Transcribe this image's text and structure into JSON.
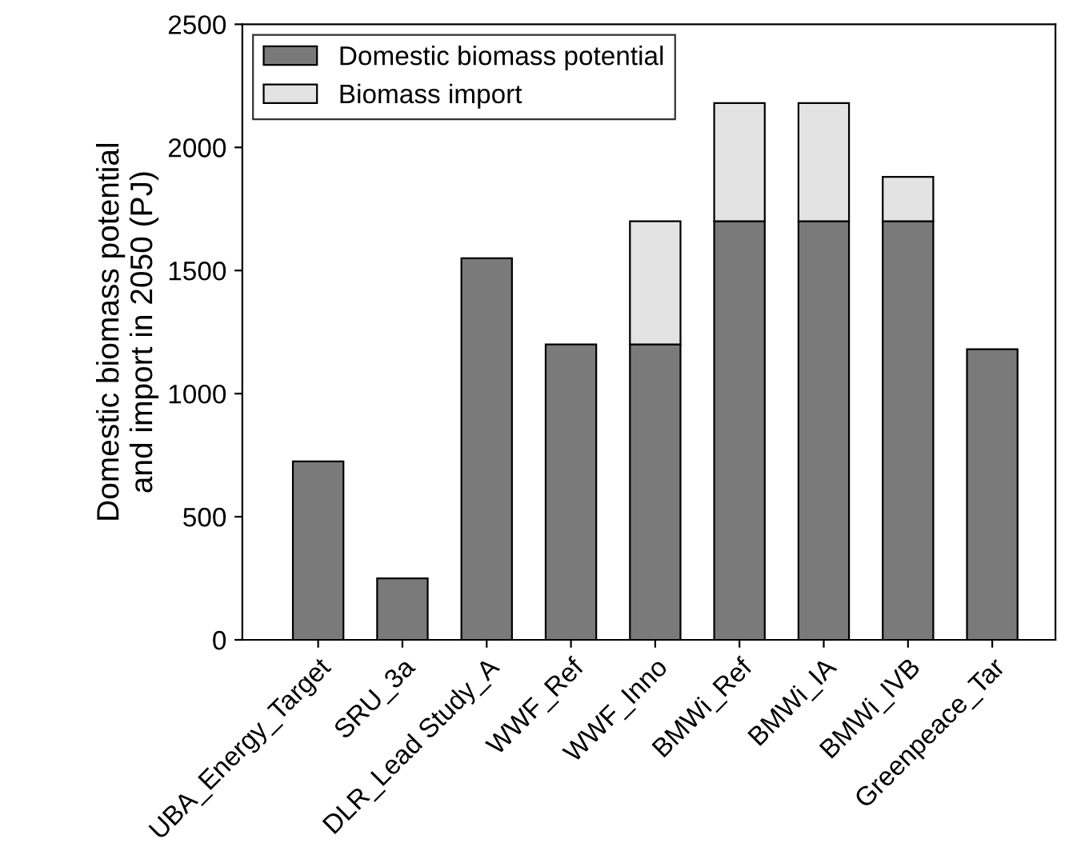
{
  "chart_data": {
    "type": "bar",
    "stacked": true,
    "ylabel": "Domestic biomass potential\nand import in 2050 (PJ)",
    "categories": [
      "UBA_Energy_Target",
      "SRU_3a",
      "DLR_Lead Study_A",
      "WWF_Ref",
      "WWF_Inno",
      "BMWi_Ref",
      "BMWi_IA",
      "BMWi_IVB",
      "Greenpeace_Tar"
    ],
    "series": [
      {
        "name": "Domestic biomass potential",
        "color": "#7a7a7a",
        "values": [
          725,
          250,
          1550,
          1200,
          1200,
          1700,
          1700,
          1700,
          1180
        ]
      },
      {
        "name": "Biomass import",
        "color": "#e3e3e3",
        "values": [
          null,
          null,
          null,
          null,
          500,
          480,
          480,
          180,
          null
        ]
      }
    ],
    "ylim": [
      0,
      2500
    ],
    "yticks": [
      0,
      500,
      1000,
      1500,
      2000,
      2500
    ],
    "grid": false,
    "legend": "top left"
  }
}
